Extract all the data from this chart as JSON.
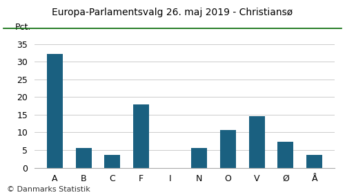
{
  "title": "Europa-Parlamentsvalg 26. maj 2019 - Christiansø",
  "categories": [
    "A",
    "B",
    "C",
    "F",
    "I",
    "N",
    "O",
    "V",
    "Ø",
    "Å"
  ],
  "values": [
    32.3,
    5.6,
    3.7,
    17.9,
    0.0,
    5.6,
    10.7,
    14.5,
    7.4,
    3.7
  ],
  "bar_color": "#1a6080",
  "ylabel": "Pct.",
  "ylim": [
    0,
    37
  ],
  "yticks": [
    0,
    5,
    10,
    15,
    20,
    25,
    30,
    35
  ],
  "background_color": "#ffffff",
  "footer": "© Danmarks Statistik",
  "title_color": "#000000",
  "title_fontsize": 10,
  "bar_width": 0.55,
  "grid_color": "#cccccc",
  "top_line_color": "#006600"
}
